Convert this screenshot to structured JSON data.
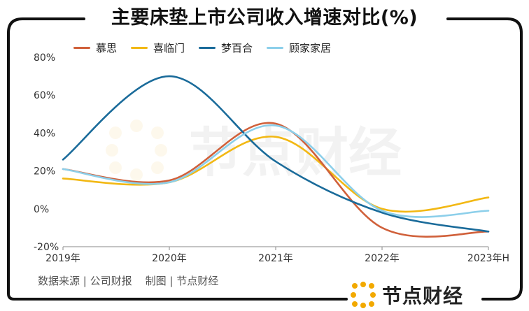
{
  "title": "主要床垫上市公司收入增速对比(%)",
  "source": "数据来源 | 公司财报    制图 | 节点财经",
  "watermark": "节点财经",
  "brand": "节点财经",
  "chart_data": {
    "type": "line",
    "title": "主要床垫上市公司收入增速对比(%)",
    "x": [
      "2019年",
      "2020年",
      "2021年",
      "2022年",
      "2023年H"
    ],
    "ylim": [
      -20,
      80
    ],
    "yticks": [
      -20,
      0,
      20,
      40,
      60,
      80
    ],
    "ytick_labels": [
      "-20%",
      "0%",
      "20%",
      "40%",
      "60%",
      "80%"
    ],
    "grid": false,
    "legend_position": "top-left",
    "series": [
      {
        "name": "慕思",
        "color": "#D0603A",
        "values": [
          21,
          15,
          45,
          -10,
          -12
        ]
      },
      {
        "name": "喜临门",
        "color": "#F2B814",
        "values": [
          16,
          14,
          38,
          0,
          6
        ]
      },
      {
        "name": "梦百合",
        "color": "#1A6B9A",
        "values": [
          26,
          70,
          25,
          -2,
          -12
        ]
      },
      {
        "name": "顾家家居",
        "color": "#8CCFEA",
        "values": [
          21,
          14,
          44,
          -1,
          -1
        ]
      }
    ]
  }
}
